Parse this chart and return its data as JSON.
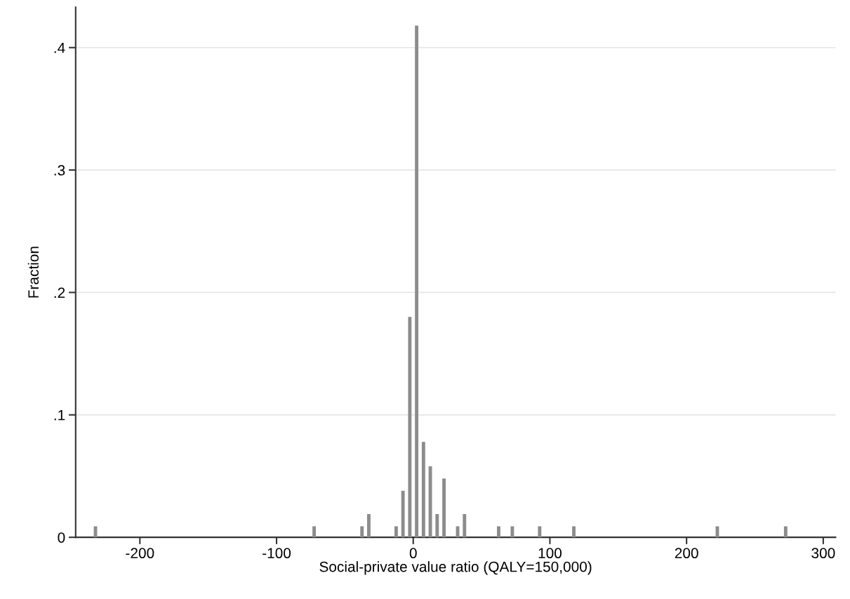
{
  "chart_data": {
    "type": "histogram",
    "xlabel": "Social-private value ratio (QALY=150,000)",
    "ylabel": "Fraction",
    "color": "#8c8c8c",
    "bins": [
      -235,
      -230,
      -225,
      -220,
      -215,
      -210,
      -205,
      -200,
      -195,
      -190,
      -185,
      -180,
      -175,
      -170,
      -165,
      -160,
      -155,
      -150,
      -145,
      -140,
      -135,
      -130,
      -125,
      -120,
      -115,
      -110,
      -105,
      -100,
      -95,
      -90,
      -85,
      -80,
      -75,
      -70,
      -65,
      -60,
      -55,
      -50,
      -45,
      -40,
      -35,
      -30,
      -25,
      -20,
      -15,
      -10,
      -5,
      0,
      5,
      10,
      15,
      20,
      25,
      30,
      35,
      40,
      45,
      50,
      55,
      60,
      65,
      70,
      75,
      80,
      85,
      90,
      95,
      100,
      105,
      110,
      115,
      120,
      125,
      130,
      135,
      140,
      145,
      150,
      155,
      160,
      165,
      170,
      175,
      180,
      185,
      190,
      195,
      200,
      205,
      210,
      215,
      220,
      225,
      230,
      235,
      240,
      245,
      250,
      255,
      260,
      265,
      270,
      275
    ],
    "values": [
      0.009,
      0,
      0,
      0,
      0,
      0,
      0,
      0,
      0,
      0,
      0,
      0,
      0,
      0,
      0,
      0,
      0,
      0,
      0,
      0,
      0,
      0,
      0,
      0,
      0,
      0,
      0,
      0,
      0,
      0,
      0,
      0,
      0.009,
      0,
      0,
      0,
      0,
      0,
      0,
      0.009,
      0.019,
      0,
      0,
      0,
      0.009,
      0.038,
      0.18,
      0.418,
      0.078,
      0.058,
      0.019,
      0.048,
      0,
      0.009,
      0.019,
      0,
      0,
      0,
      0,
      0.009,
      0,
      0.009,
      0,
      0,
      0,
      0.009,
      0,
      0,
      0,
      0,
      0.009,
      0,
      0,
      0,
      0,
      0,
      0,
      0,
      0,
      0,
      0,
      0,
      0,
      0,
      0,
      0,
      0,
      0,
      0,
      0,
      0,
      0.009,
      0,
      0,
      0,
      0,
      0,
      0,
      0,
      0,
      0,
      0.009
    ],
    "xlim": [
      -247,
      309
    ],
    "xticks": [
      -200,
      -100,
      0,
      100,
      200,
      300
    ],
    "ylim": [
      0,
      0.433
    ],
    "yticks": [
      {
        "value": 0,
        "label": "0"
      },
      {
        "value": 0.1,
        "label": ".1"
      },
      {
        "value": 0.2,
        "label": ".2"
      },
      {
        "value": 0.3,
        "label": ".3"
      },
      {
        "value": 0.4,
        "label": ".4"
      }
    ],
    "grid": "y"
  }
}
